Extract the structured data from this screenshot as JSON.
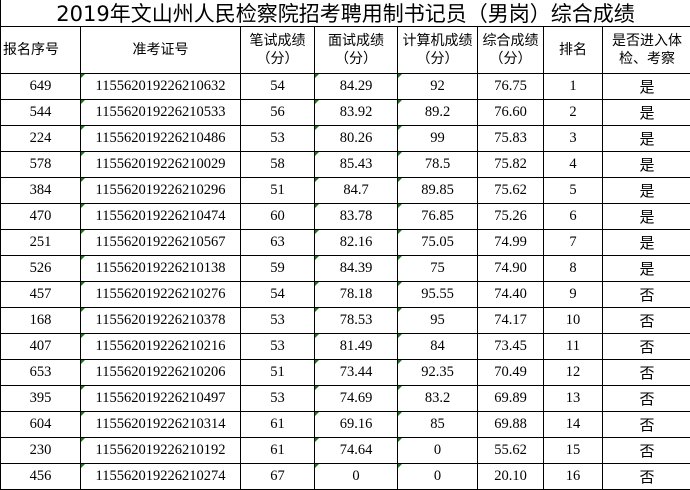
{
  "title": "2019年文山州人民检察院招考聘用制书记员（男岗）综合成绩",
  "columns": [
    "报名序号",
    "准考证号",
    "笔试成绩（分）",
    "面试成绩（分）",
    "计算机成绩（分）",
    "综合成绩（分）",
    "排名",
    "是否进入体检、考察"
  ],
  "rows": [
    [
      "649",
      "115562019226210632",
      "54",
      "84.29",
      "92",
      "76.75",
      "1",
      "是"
    ],
    [
      "544",
      "115562019226210533",
      "56",
      "83.92",
      "89.2",
      "76.60",
      "2",
      "是"
    ],
    [
      "224",
      "115562019226210486",
      "53",
      "80.26",
      "99",
      "75.83",
      "3",
      "是"
    ],
    [
      "578",
      "115562019226210029",
      "58",
      "85.43",
      "78.5",
      "75.82",
      "4",
      "是"
    ],
    [
      "384",
      "115562019226210296",
      "51",
      "84.7",
      "89.85",
      "75.62",
      "5",
      "是"
    ],
    [
      "470",
      "115562019226210474",
      "60",
      "83.78",
      "76.85",
      "75.26",
      "6",
      "是"
    ],
    [
      "251",
      "115562019226210567",
      "63",
      "82.16",
      "75.05",
      "74.99",
      "7",
      "是"
    ],
    [
      "526",
      "115562019226210138",
      "59",
      "84.39",
      "75",
      "74.90",
      "8",
      "是"
    ],
    [
      "457",
      "115562019226210276",
      "54",
      "78.18",
      "95.55",
      "74.40",
      "9",
      "否"
    ],
    [
      "168",
      "115562019226210378",
      "53",
      "78.53",
      "95",
      "74.17",
      "10",
      "否"
    ],
    [
      "407",
      "115562019226210216",
      "53",
      "81.49",
      "84",
      "73.45",
      "11",
      "否"
    ],
    [
      "653",
      "115562019226210206",
      "51",
      "73.44",
      "92.35",
      "70.49",
      "12",
      "否"
    ],
    [
      "395",
      "115562019226210497",
      "53",
      "74.69",
      "83.2",
      "69.89",
      "13",
      "否"
    ],
    [
      "604",
      "115562019226210314",
      "61",
      "69.16",
      "85",
      "69.88",
      "14",
      "否"
    ],
    [
      "230",
      "115562019226210192",
      "61",
      "74.64",
      "0",
      "55.62",
      "15",
      "否"
    ],
    [
      "456",
      "115562019226210274",
      "67",
      "0",
      "0",
      "20.10",
      "16",
      "否"
    ]
  ],
  "colors": {
    "text_number_marker": "#1a7a1a",
    "grid": "#000000"
  }
}
